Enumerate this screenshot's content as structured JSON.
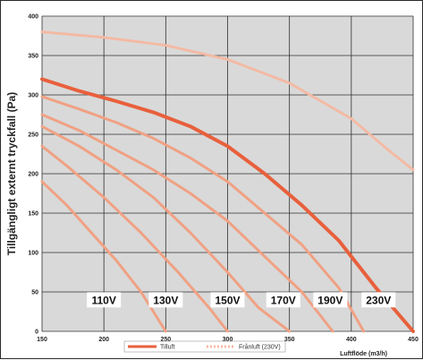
{
  "chart_data": {
    "type": "line",
    "ylabel": "Tillgängligt externt tryckfall (Pa)",
    "xlabel": "Luftflöde (m3/h)",
    "xlim": [
      150,
      450
    ],
    "ylim": [
      0,
      400
    ],
    "x_ticks": [
      "150",
      "200",
      "250",
      "300",
      "350",
      "400",
      "450"
    ],
    "y_ticks": [
      "0",
      "50",
      "100",
      "150",
      "200",
      "250",
      "300",
      "350",
      "400"
    ],
    "grid": true,
    "legend": {
      "placement": "bottom",
      "items": [
        {
          "label": "Tilluft",
          "color": "#e8603c",
          "style": "solid"
        },
        {
          "label": "Frånluft (230V)",
          "color": "#f4b9a3",
          "style": "dashed"
        }
      ]
    },
    "series": [
      {
        "name": "110V",
        "kind": "Tilluft",
        "color": "#f0a183",
        "width": 3,
        "points": [
          [
            150,
            190
          ],
          [
            170,
            160
          ],
          [
            190,
            125
          ],
          [
            210,
            90
          ],
          [
            230,
            50
          ],
          [
            250,
            0
          ]
        ]
      },
      {
        "name": "130V",
        "kind": "Tilluft",
        "color": "#f0a183",
        "width": 3,
        "points": [
          [
            150,
            235
          ],
          [
            170,
            210
          ],
          [
            200,
            170
          ],
          [
            230,
            125
          ],
          [
            260,
            75
          ],
          [
            285,
            30
          ],
          [
            300,
            0
          ]
        ]
      },
      {
        "name": "150V",
        "kind": "Tilluft",
        "color": "#f0a183",
        "width": 3,
        "points": [
          [
            150,
            260
          ],
          [
            180,
            235
          ],
          [
            210,
            205
          ],
          [
            240,
            170
          ],
          [
            270,
            125
          ],
          [
            300,
            75
          ],
          [
            325,
            30
          ],
          [
            350,
            0
          ]
        ]
      },
      {
        "name": "170V",
        "kind": "Tilluft",
        "color": "#f0a183",
        "width": 3,
        "points": [
          [
            150,
            275
          ],
          [
            180,
            255
          ],
          [
            210,
            230
          ],
          [
            240,
            205
          ],
          [
            270,
            175
          ],
          [
            300,
            140
          ],
          [
            330,
            95
          ],
          [
            360,
            50
          ],
          [
            385,
            0
          ]
        ]
      },
      {
        "name": "190V",
        "kind": "Tilluft",
        "color": "#f0a183",
        "width": 3,
        "points": [
          [
            150,
            298
          ],
          [
            180,
            282
          ],
          [
            210,
            265
          ],
          [
            240,
            245
          ],
          [
            270,
            220
          ],
          [
            300,
            190
          ],
          [
            330,
            150
          ],
          [
            360,
            110
          ],
          [
            390,
            55
          ],
          [
            410,
            0
          ]
        ]
      },
      {
        "name": "230V",
        "kind": "Tilluft",
        "color": "#e8603c",
        "width": 4,
        "points": [
          [
            150,
            320
          ],
          [
            180,
            305
          ],
          [
            210,
            292
          ],
          [
            240,
            278
          ],
          [
            270,
            260
          ],
          [
            300,
            235
          ],
          [
            330,
            200
          ],
          [
            360,
            160
          ],
          [
            390,
            115
          ],
          [
            420,
            55
          ],
          [
            450,
            0
          ]
        ]
      },
      {
        "name": "Frånluft (230V)",
        "kind": "Frånluft",
        "color": "#f4b9a3",
        "width": 3,
        "dashed": true,
        "points": [
          [
            150,
            380
          ],
          [
            200,
            373
          ],
          [
            250,
            363
          ],
          [
            300,
            345
          ],
          [
            350,
            315
          ],
          [
            400,
            270
          ],
          [
            430,
            230
          ],
          [
            450,
            205
          ]
        ]
      }
    ],
    "annotations": [
      {
        "text": "110V",
        "x": 200,
        "y": 40
      },
      {
        "text": "130V",
        "x": 250,
        "y": 40
      },
      {
        "text": "150V",
        "x": 300,
        "y": 40
      },
      {
        "text": "170V",
        "x": 345,
        "y": 40
      },
      {
        "text": "190V",
        "x": 383,
        "y": 40
      },
      {
        "text": "230V",
        "x": 422,
        "y": 40
      }
    ]
  },
  "colors": {
    "plot_bg": "#d9d9d9",
    "grid": "#303030",
    "label_bg": "#ffffff"
  }
}
